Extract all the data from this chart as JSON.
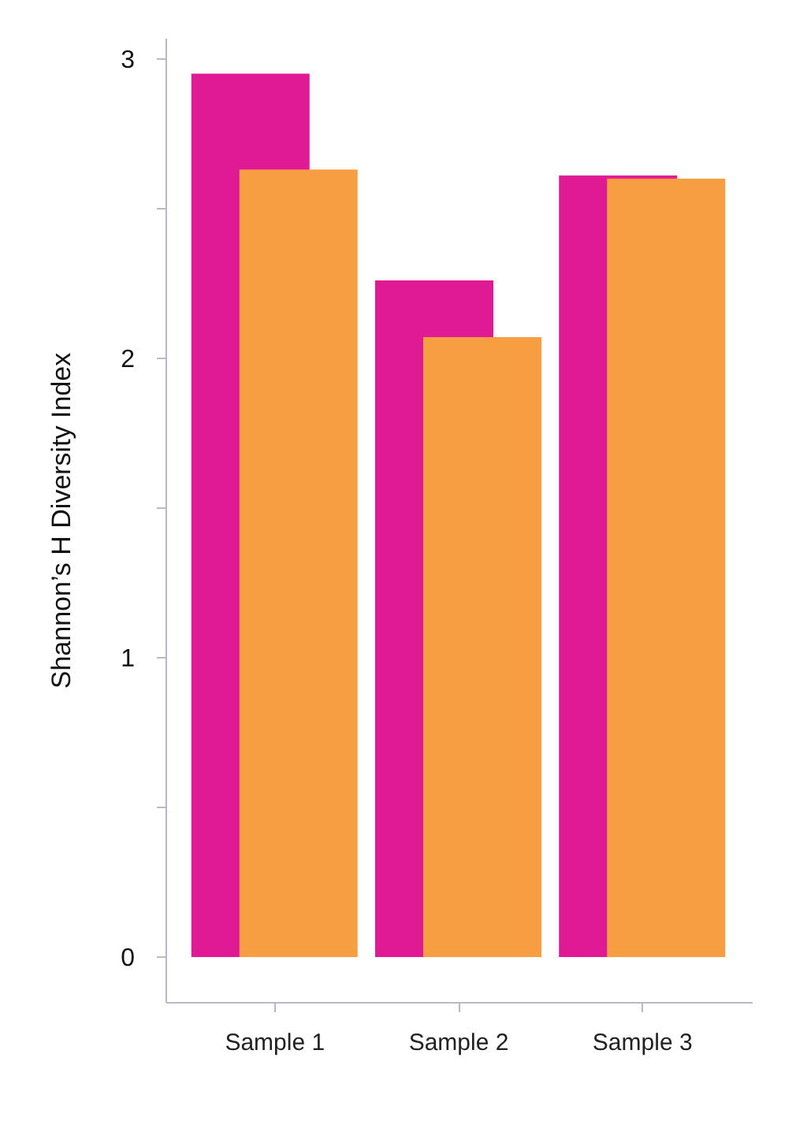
{
  "chart_data": {
    "type": "bar",
    "ylabel": "Shannon’s H Diversity Index",
    "categories": [
      "Sample 1",
      "Sample 2",
      "Sample 3"
    ],
    "series": [
      {
        "color": "#e01a95",
        "values": [
          2.95,
          2.26,
          2.61
        ]
      },
      {
        "color": "#f79e43",
        "values": [
          2.63,
          2.07,
          2.6
        ]
      }
    ],
    "ylim": [
      -0.15,
      3.07
    ],
    "yticks": [
      0,
      {
        "value": 0.5,
        "label": null
      },
      1,
      {
        "value": 1.5,
        "label": null
      },
      2,
      {
        "value": 2.5,
        "label": null
      },
      3
    ],
    "grid": false
  }
}
